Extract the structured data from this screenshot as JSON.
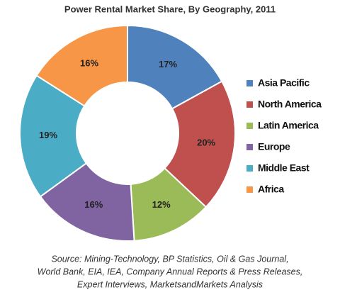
{
  "chart_data": {
    "type": "donut",
    "title": "Power Rental Market Share, By Geography, 2011",
    "categories": [
      "Asia Pacific",
      "North America",
      "Latin America",
      "Europe",
      "Middle East",
      "Africa"
    ],
    "values": [
      17,
      20,
      12,
      16,
      19,
      16
    ],
    "value_labels": [
      "17%",
      "20%",
      "12%",
      "16%",
      "19%",
      "16%"
    ],
    "colors": [
      "#4f81bd",
      "#c0504d",
      "#9bbb59",
      "#8064a2",
      "#4bacc6",
      "#f79646"
    ],
    "legend": "right",
    "source": [
      "Source: Mining-Technology, BP Statistics, Oil & Gas Journal,",
      "World Bank, EIA, IEA, Company Annual Reports & Press Releases,",
      "Expert Interviews, MarketsandMarkets Analysis"
    ]
  }
}
